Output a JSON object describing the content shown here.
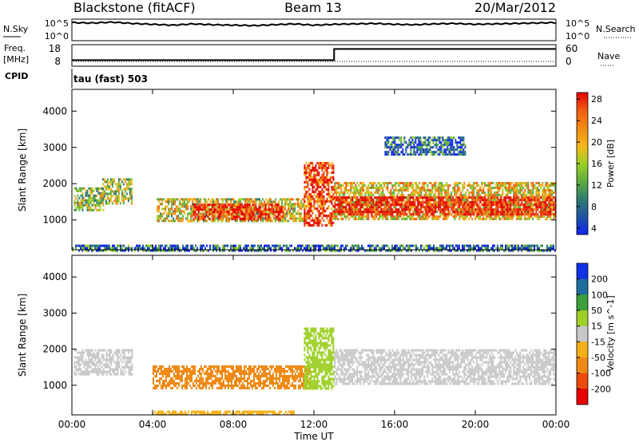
{
  "header": {
    "station": "Blackstone (fitACF)",
    "beam": "Beam 13",
    "date": "20/Mar/2012"
  },
  "noise_panel": {
    "left_label": "N.Sky",
    "left_ticks": [
      "10^5",
      "10^0"
    ],
    "right_ticks": [
      "10^5",
      "10^0"
    ],
    "right_label": "N.Search"
  },
  "freq_panel": {
    "left_label_top": "Freq.",
    "left_label_unit": "[MHz]",
    "left_ticks": [
      "18",
      "8"
    ],
    "right_ticks": [
      "60",
      "0"
    ],
    "right_label": "Nave",
    "cpid_label": "CPID"
  },
  "mode_text": "tau (fast) 503",
  "chart_data": [
    {
      "type": "line",
      "name": "N.Sky",
      "x_hours": [
        0,
        1,
        2,
        3,
        4,
        5,
        6,
        7,
        8,
        9,
        10,
        11,
        12,
        13,
        14,
        15,
        16,
        17,
        18,
        19,
        20,
        21,
        22,
        23,
        24
      ],
      "log_values": [
        4.2,
        4.1,
        4.3,
        4.0,
        3.8,
        3.6,
        3.9,
        3.7,
        3.6,
        3.5,
        3.7,
        3.9,
        3.6,
        3.8,
        3.9,
        4.0,
        3.8,
        3.7,
        3.9,
        4.0,
        3.8,
        3.9,
        4.0,
        4.1,
        4.2
      ],
      "ylim": [
        0,
        5
      ]
    },
    {
      "type": "line",
      "name": "Freq.",
      "x_hours": [
        0,
        13,
        13,
        24
      ],
      "values": [
        10.8,
        10.8,
        16.0,
        16.0
      ],
      "ylim": [
        8,
        18
      ]
    },
    {
      "type": "heatmap",
      "name": "Power",
      "title": "tau (fast) 503",
      "xlabel": "Time UT",
      "ylabel": "Slant Range [km]",
      "xticks": [
        "00:00",
        "04:00",
        "08:00",
        "12:00",
        "16:00",
        "20:00",
        "00:00"
      ],
      "yticks": [
        "1000",
        "2000",
        "3000",
        "4000"
      ],
      "xlim_hours": [
        0,
        24
      ],
      "ylim_km": [
        180,
        4600
      ],
      "colorbar_label": "Power [dB]",
      "colorbar_ticks": [
        "28",
        "24",
        "20",
        "16",
        "12",
        "8",
        "4"
      ],
      "colorscale": [
        "#1226f0",
        "#1d51a8",
        "#2e7d6e",
        "#5fae3c",
        "#9ed028",
        "#f5b818",
        "#f28a14",
        "#ee5a10",
        "#e62a0c",
        "#e60000"
      ],
      "regions": [
        {
          "t0": 0.1,
          "t1": 1.6,
          "r0": 1300,
          "r1": 1900,
          "level": 0.42
        },
        {
          "t0": 1.5,
          "t1": 3.0,
          "r0": 1450,
          "r1": 2150,
          "level": 0.45
        },
        {
          "t0": 4.2,
          "t1": 11.5,
          "r0": 950,
          "r1": 1600,
          "level": 0.5
        },
        {
          "t0": 6.0,
          "t1": 10.5,
          "r0": 1050,
          "r1": 1450,
          "level": 0.85
        },
        {
          "t0": 11.5,
          "t1": 13.0,
          "r0": 850,
          "r1": 2600,
          "level": 0.8
        },
        {
          "t0": 13.0,
          "t1": 24.0,
          "r0": 1000,
          "r1": 2050,
          "level": 0.55
        },
        {
          "t0": 13.0,
          "t1": 24.0,
          "r0": 1150,
          "r1": 1650,
          "level": 0.9
        },
        {
          "t0": 15.5,
          "t1": 19.5,
          "r0": 2800,
          "r1": 3300,
          "level": 0.2
        },
        {
          "t0": 0.0,
          "t1": 24.0,
          "r0": 180,
          "r1": 320,
          "level": 0.2
        }
      ]
    },
    {
      "type": "heatmap",
      "name": "Velocity",
      "xlabel": "Time UT",
      "ylabel": "Slant Range [km]",
      "xticks": [
        "00:00",
        "04:00",
        "08:00",
        "12:00",
        "16:00",
        "20:00",
        "00:00"
      ],
      "yticks": [
        "1000",
        "2000",
        "3000",
        "4000"
      ],
      "xlim_hours": [
        0,
        24
      ],
      "ylim_km": [
        180,
        4600
      ],
      "colorbar_label": "Velocity [m s^-1]",
      "colorbar_ticks": [
        "200",
        "100",
        "50",
        "15",
        "-15",
        "-50",
        "-100",
        "-200"
      ],
      "colorscale": [
        "#e60000",
        "#ee4a0c",
        "#f08a14",
        "#f5b018",
        "#c8c8c8",
        "#9ed028",
        "#3c9e3c",
        "#1d6e9e",
        "#1230e6"
      ],
      "regions": [
        {
          "t0": 0.1,
          "t1": 3.0,
          "r0": 1300,
          "r1": 2000,
          "vel": 0
        },
        {
          "t0": 4.0,
          "t1": 11.8,
          "r0": 950,
          "r1": 1550,
          "vel": -70
        },
        {
          "t0": 11.5,
          "t1": 13.0,
          "r0": 900,
          "r1": 2600,
          "vel": 40
        },
        {
          "t0": 13.0,
          "t1": 24.0,
          "r0": 1050,
          "r1": 2000,
          "vel": 0
        },
        {
          "t0": 4.0,
          "t1": 11.0,
          "r0": 180,
          "r1": 300,
          "vel": -40
        }
      ]
    }
  ]
}
